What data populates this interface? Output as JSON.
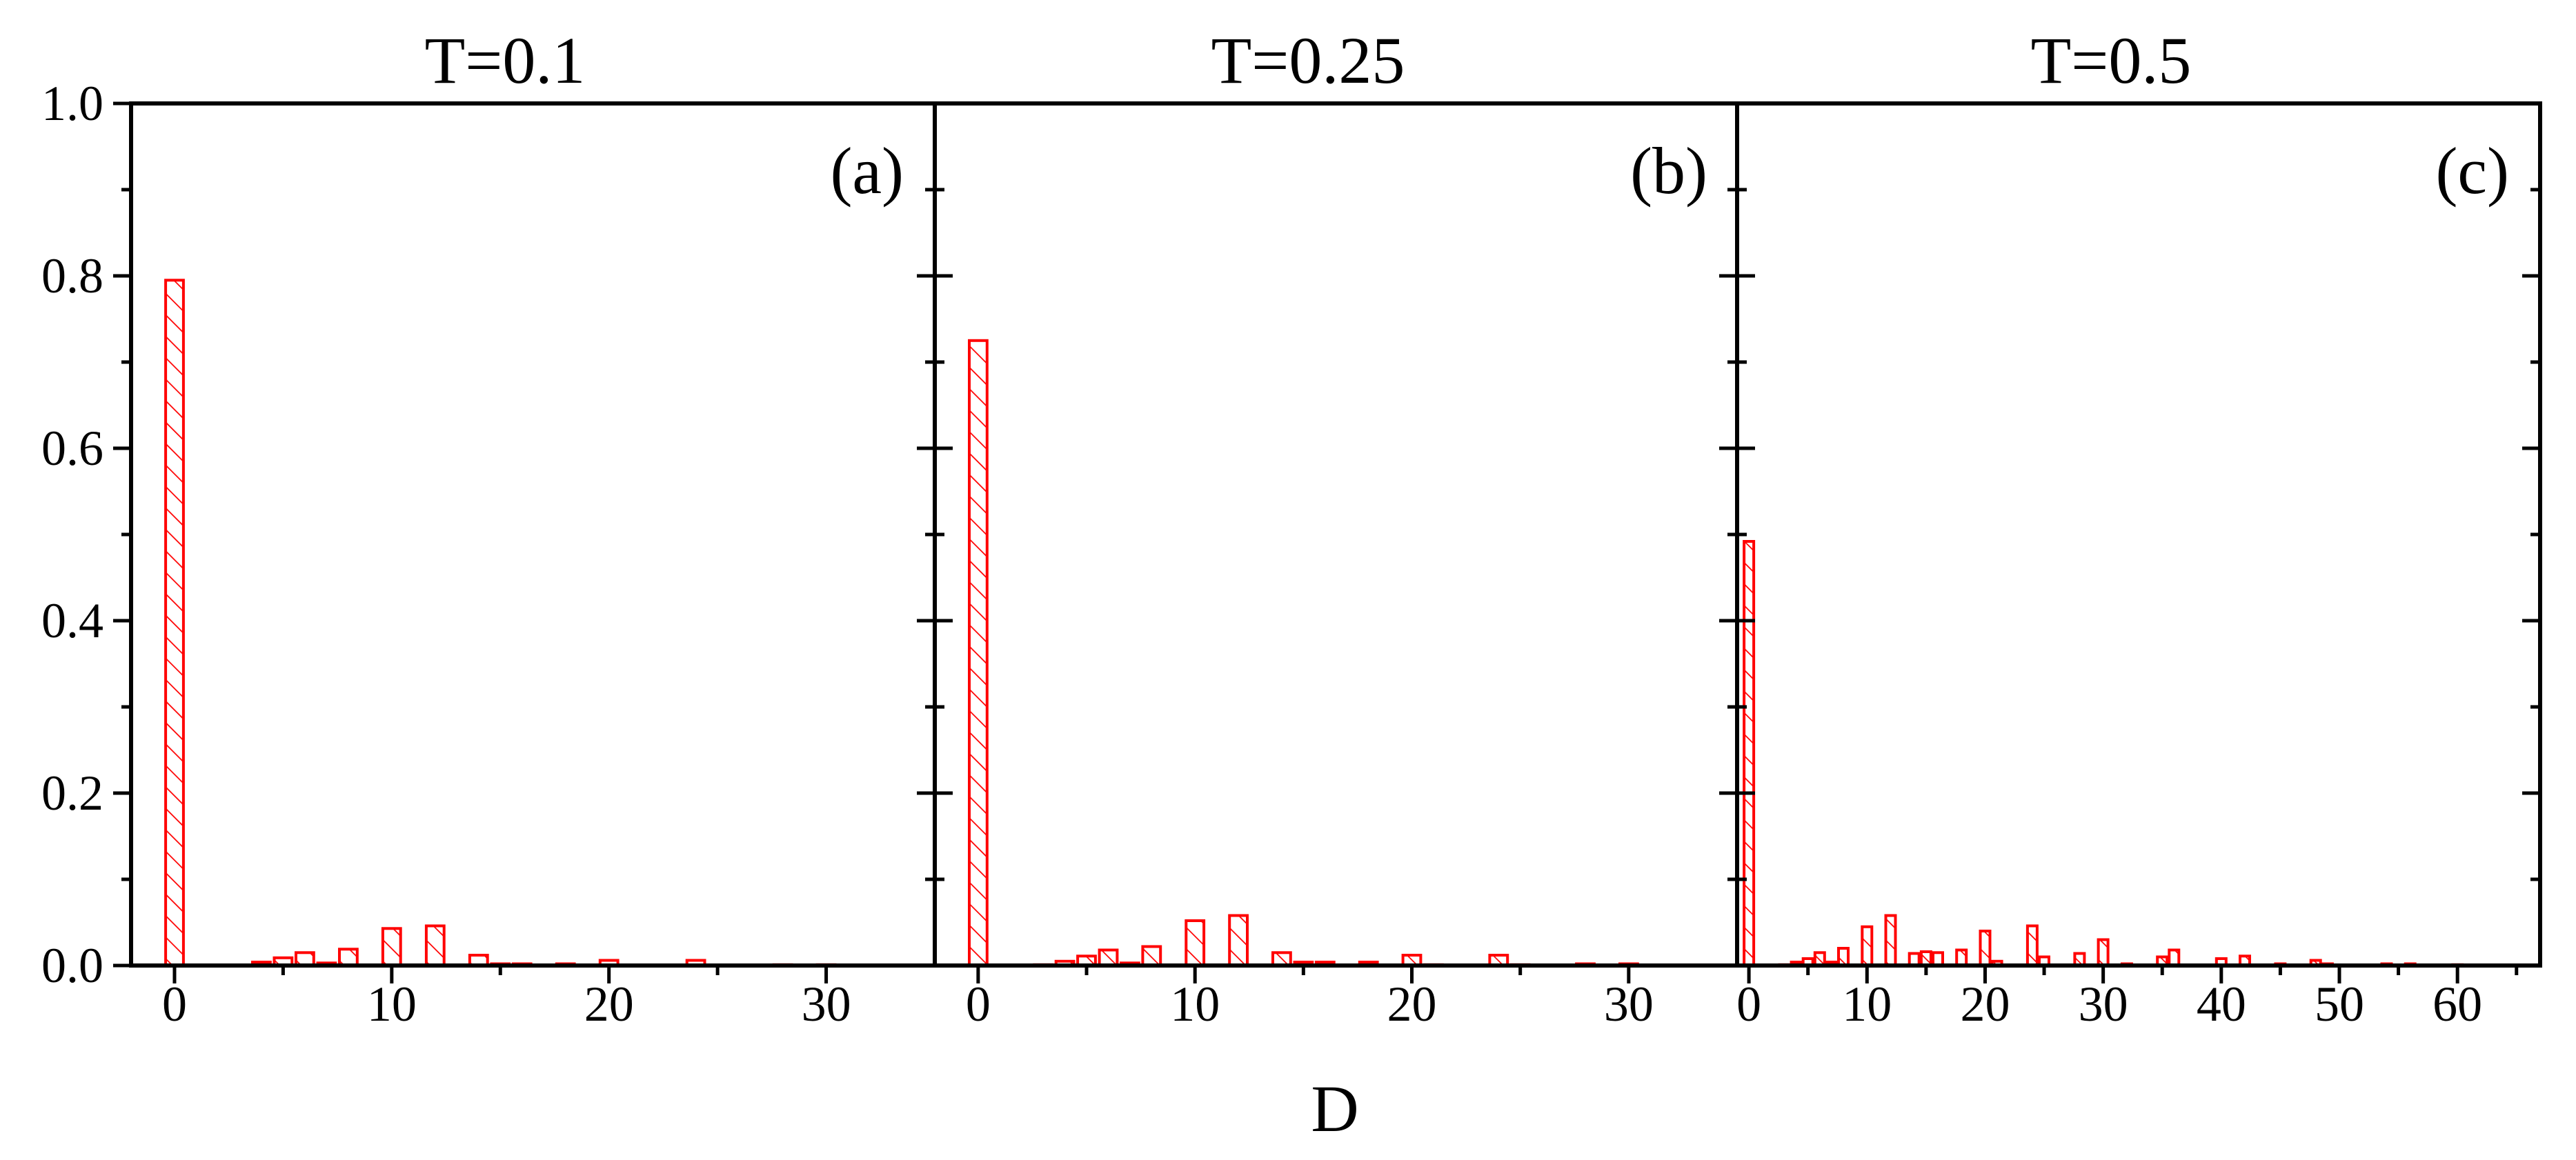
{
  "figure": {
    "xlabel": "D",
    "ylim": [
      0,
      1.0
    ],
    "yticks": [
      "0.0",
      "0.2",
      "0.4",
      "0.6",
      "0.8",
      "1.0"
    ],
    "bar_color": "#ff0000",
    "hatch": "diagonal"
  },
  "chart_data": [
    {
      "type": "bar",
      "title": "T=0.1",
      "panel_label": "(a)",
      "xlabel": "D",
      "ylabel": "",
      "xlim": [
        -2,
        35
      ],
      "ylim": [
        0,
        1.0
      ],
      "xticks": [
        "0",
        "10",
        "20",
        "30"
      ],
      "x": [
        0,
        4,
        5,
        6,
        7,
        8,
        10,
        12,
        14,
        15,
        16,
        18,
        20,
        24,
        28,
        30
      ],
      "values": [
        0.795,
        0.004,
        0.009,
        0.015,
        0.003,
        0.019,
        0.043,
        0.046,
        0.012,
        0.002,
        0.002,
        0.002,
        0.006,
        0.006,
        0.001,
        0.001
      ]
    },
    {
      "type": "bar",
      "title": "T=0.25",
      "panel_label": "(b)",
      "xlabel": "D",
      "ylabel": "",
      "xlim": [
        -2,
        35
      ],
      "ylim": [
        0,
        1.0
      ],
      "xticks": [
        "0",
        "10",
        "20",
        "30"
      ],
      "x": [
        0,
        3,
        4,
        5,
        6,
        7,
        8,
        10,
        12,
        14,
        15,
        16,
        18,
        20,
        21,
        24,
        25,
        28,
        30
      ],
      "values": [
        0.725,
        0.001,
        0.005,
        0.011,
        0.018,
        0.003,
        0.022,
        0.052,
        0.058,
        0.015,
        0.004,
        0.004,
        0.004,
        0.012,
        0.001,
        0.012,
        0.001,
        0.002,
        0.002
      ]
    },
    {
      "type": "bar",
      "title": "T=0.5",
      "panel_label": "(c)",
      "xlabel": "D",
      "ylabel": "",
      "xlim": [
        -1,
        67
      ],
      "ylim": [
        0,
        1.0
      ],
      "xticks": [
        "0",
        "10",
        "20",
        "30",
        "40",
        "50",
        "60"
      ],
      "x": [
        0,
        3,
        4,
        5,
        6,
        7,
        8,
        10,
        12,
        14,
        15,
        16,
        18,
        20,
        21,
        24,
        25,
        28,
        30,
        32,
        35,
        36,
        40,
        42,
        45,
        48,
        49,
        54,
        56,
        60
      ],
      "values": [
        0.492,
        0.001,
        0.004,
        0.008,
        0.015,
        0.004,
        0.02,
        0.045,
        0.058,
        0.014,
        0.016,
        0.015,
        0.018,
        0.04,
        0.005,
        0.046,
        0.01,
        0.014,
        0.03,
        0.002,
        0.01,
        0.018,
        0.008,
        0.011,
        0.002,
        0.006,
        0.002,
        0.002,
        0.002,
        0.001
      ]
    }
  ]
}
